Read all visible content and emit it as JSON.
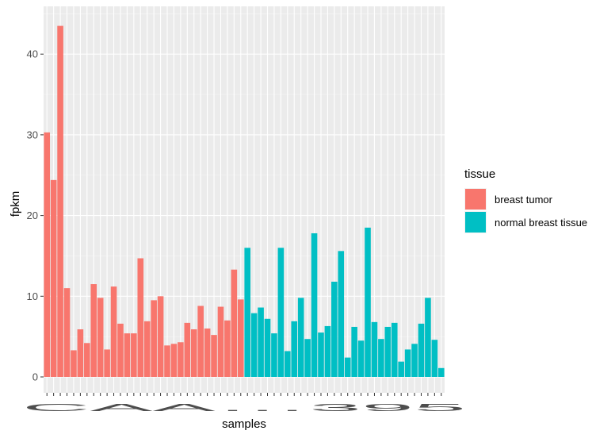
{
  "chart_data": {
    "type": "bar",
    "xlabel": "samples",
    "ylabel": "fpkm",
    "ylim": [
      0,
      45
    ],
    "yticks": [
      0,
      10,
      20,
      30,
      40
    ],
    "xtick_labels_visible_text": "CAA…395",
    "xtick_labels_overlapping": true,
    "grid": true,
    "legend": {
      "title": "tissue",
      "placement": "right",
      "entries": [
        {
          "name": "breast tumor",
          "color": "#F8766D"
        },
        {
          "name": "normal breast tissue",
          "color": "#00BFC4"
        }
      ]
    },
    "colors": {
      "panel_background": "#EBEBEB",
      "grid_major": "#FFFFFF",
      "grid_minor": "#F5F5F5",
      "tick_label": "#4D4D4D",
      "axis_title": "#000000"
    },
    "series": [
      {
        "name": "breast tumor",
        "color": "#F8766D",
        "values": [
          30.3,
          24.4,
          43.5,
          11.0,
          3.3,
          5.9,
          4.2,
          11.5,
          9.8,
          3.4,
          11.2,
          6.6,
          5.4,
          5.4,
          14.7,
          6.9,
          9.5,
          10.0,
          3.9,
          4.1,
          4.3,
          6.7,
          5.9,
          8.8,
          6.0,
          5.2,
          8.7,
          7.0,
          13.3,
          9.6
        ]
      },
      {
        "name": "normal breast tissue",
        "color": "#00BFC4",
        "values": [
          16.0,
          7.9,
          8.6,
          7.2,
          5.4,
          16.0,
          3.2,
          6.9,
          9.8,
          4.7,
          17.8,
          5.5,
          6.3,
          11.8,
          15.6,
          2.4,
          6.2,
          4.5,
          18.5,
          6.8,
          4.7,
          6.2,
          6.7,
          1.9,
          3.4,
          4.1,
          6.6,
          9.8,
          4.6,
          1.1
        ]
      }
    ]
  }
}
